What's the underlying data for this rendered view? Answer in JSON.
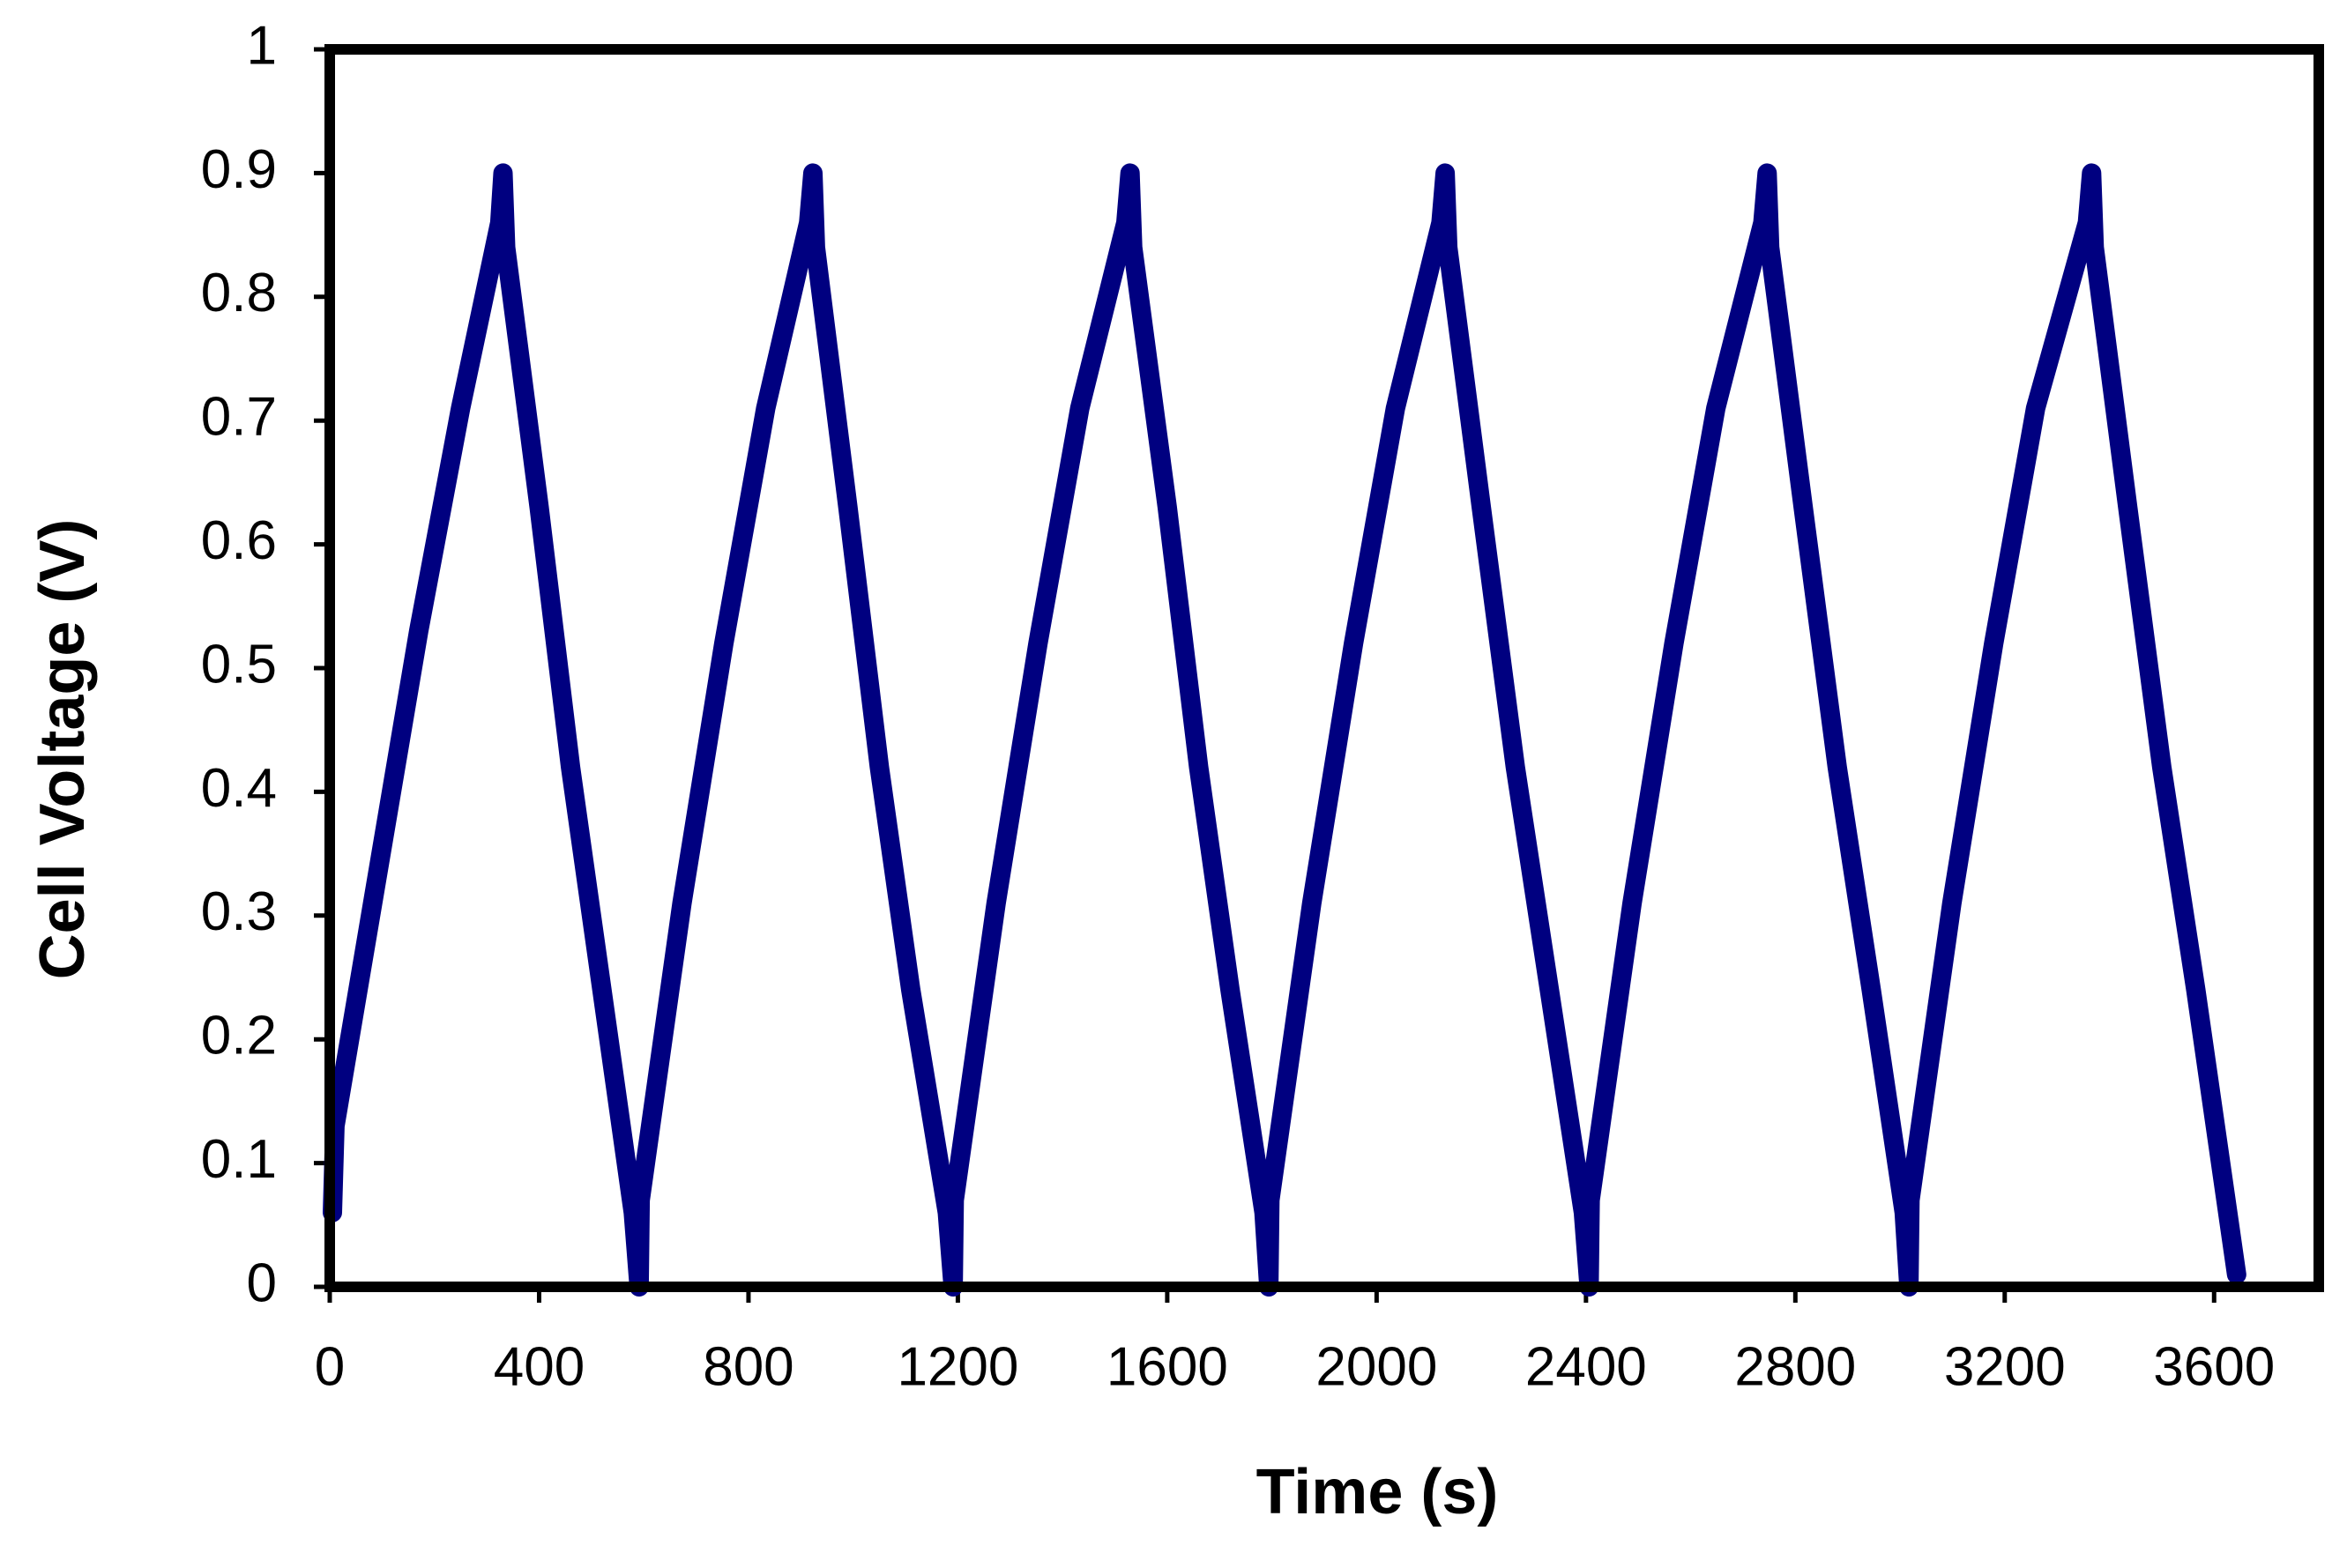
{
  "chart_data": {
    "type": "line",
    "xlabel": "Time (s)",
    "ylabel": "Cell Voltage (V)",
    "xlim": [
      0,
      3800
    ],
    "xticks": [
      0,
      400,
      800,
      1200,
      1600,
      2000,
      2400,
      2800,
      3200,
      3600
    ],
    "ylim": [
      0,
      1
    ],
    "yticks": [
      0,
      0.1,
      0.2,
      0.3,
      0.4,
      0.5,
      0.6,
      0.7,
      0.8,
      0.9,
      1
    ],
    "grid": false,
    "series": [
      {
        "color": "#000080",
        "x": [
          5,
          10,
          90,
          170,
          250,
          325,
          331,
          336,
          400,
          460,
          520,
          580,
          591,
          593,
          673,
          753,
          833,
          915,
          923,
          928,
          990,
          1050,
          1110,
          1180,
          1191,
          1193,
          1273,
          1353,
          1433,
          1521,
          1529,
          1534,
          1600,
          1660,
          1720,
          1785,
          1794,
          1796,
          1876,
          1956,
          2036,
          2123,
          2131,
          2136,
          2200,
          2265,
          2330,
          2395,
          2406,
          2408,
          2488,
          2568,
          2648,
          2738,
          2746,
          2751,
          2815,
          2880,
          2945,
          3008,
          3017,
          3019,
          3099,
          3179,
          3259,
          3358,
          3366,
          3371,
          3435,
          3500,
          3565,
          3643
        ],
        "values": [
          0.06,
          0.13,
          0.33,
          0.53,
          0.71,
          0.86,
          0.9,
          0.84,
          0.63,
          0.42,
          0.24,
          0.06,
          0.0,
          0.07,
          0.31,
          0.52,
          0.71,
          0.86,
          0.9,
          0.84,
          0.63,
          0.42,
          0.24,
          0.06,
          0.0,
          0.07,
          0.31,
          0.52,
          0.71,
          0.86,
          0.9,
          0.84,
          0.63,
          0.42,
          0.24,
          0.06,
          0.0,
          0.07,
          0.31,
          0.52,
          0.71,
          0.86,
          0.9,
          0.84,
          0.63,
          0.42,
          0.24,
          0.06,
          0.0,
          0.07,
          0.31,
          0.52,
          0.71,
          0.86,
          0.9,
          0.84,
          0.63,
          0.42,
          0.24,
          0.06,
          0.0,
          0.07,
          0.31,
          0.52,
          0.71,
          0.86,
          0.9,
          0.84,
          0.63,
          0.42,
          0.24,
          0.01
        ]
      }
    ]
  }
}
